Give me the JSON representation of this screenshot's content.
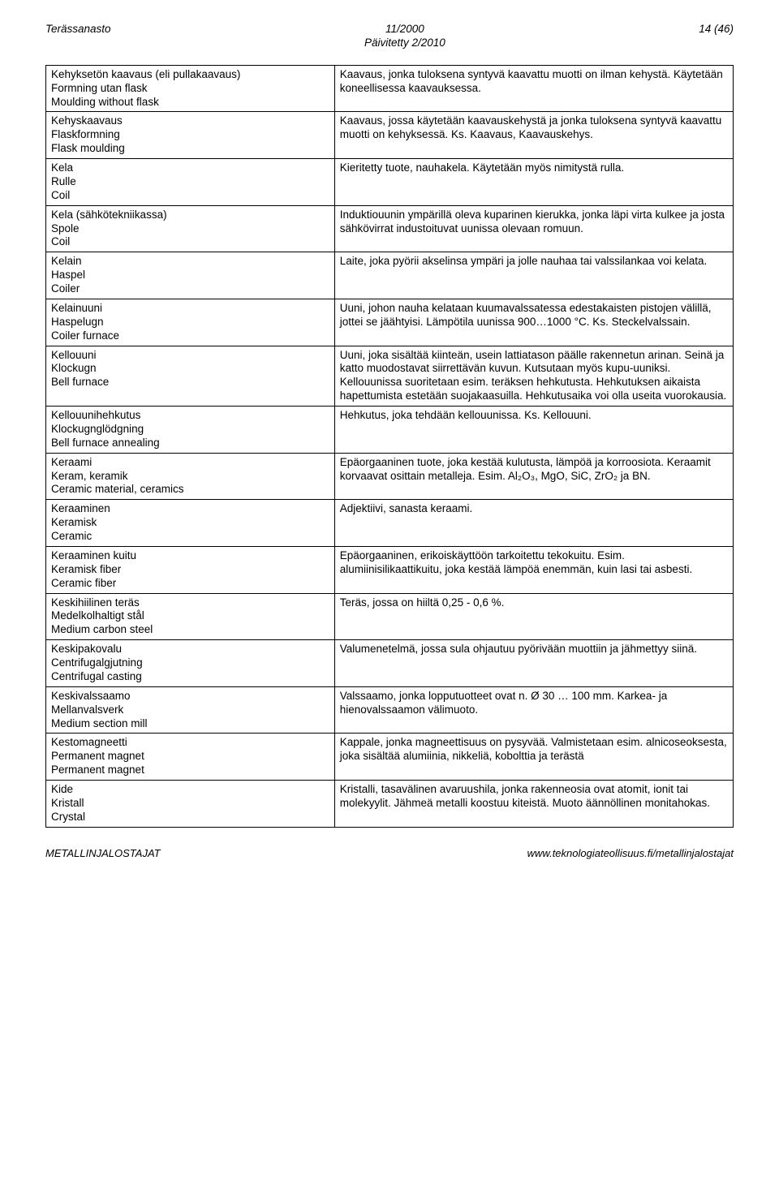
{
  "header": {
    "left": "Terässanasto",
    "center_line1": "11/2000",
    "center_line2": "Päivitetty 2/2010",
    "right": "14 (46)"
  },
  "rows": [
    {
      "terms": [
        "Kehyksetön kaavaus (eli pullakaavaus)",
        "Formning utan flask",
        "Moulding without flask"
      ],
      "def": "Kaavaus, jonka tuloksena syntyvä kaavattu muotti on ilman kehystä. Käytetään koneellisessa kaavauksessa."
    },
    {
      "terms": [
        "Kehyskaavaus",
        "Flaskformning",
        "Flask moulding"
      ],
      "def": "Kaavaus, jossa käytetään kaavauskehystä ja jonka tuloksena syntyvä kaavattu muotti on kehyksessä. Ks. Kaavaus, Kaavauskehys."
    },
    {
      "terms": [
        "Kela",
        "Rulle",
        "Coil"
      ],
      "def": "Kieritetty tuote, nauhakela. Käytetään myös nimitystä rulla."
    },
    {
      "terms": [
        "Kela (sähkötekniikassa)",
        "Spole",
        "Coil"
      ],
      "def": "Induktiouunin ympärillä oleva kuparinen kierukka, jonka läpi virta kulkee ja josta sähkövirrat industoituvat uunissa olevaan romuun."
    },
    {
      "terms": [
        "Kelain",
        "Haspel",
        "Coiler"
      ],
      "def": "Laite, joka pyörii akselinsa ympäri ja jolle nauhaa tai valssilankaa voi kelata."
    },
    {
      "terms": [
        "Kelainuuni",
        "Haspelugn",
        "Coiler furnace"
      ],
      "def": "Uuni, johon nauha kelataan kuumavalssatessa edestakaisten pistojen välillä, jottei se jäähtyisi. Lämpötila uunissa 900…1000 °C. Ks. Steckelvalssain."
    },
    {
      "terms": [
        "Kellouuni",
        "Klockugn",
        "Bell furnace"
      ],
      "def": "Uuni, joka sisältää kiinteän, usein lattiatason päälle rakennetun arinan. Seinä ja katto muodostavat siirrettävän kuvun. Kutsutaan myös kupu-uuniksi. Kellouunissa suoritetaan esim. teräksen hehkutusta. Hehkutuksen aikaista hapettumista estetään suojakaasuilla. Hehkutusaika voi olla useita vuorokausia."
    },
    {
      "terms": [
        "Kellouunihehkutus",
        "Klockugnglödgning",
        "Bell furnace annealing"
      ],
      "def": "Hehkutus, joka tehdään kellouunissa. Ks. Kellouuni."
    },
    {
      "terms": [
        "Keraami",
        "Keram, keramik",
        "Ceramic material, ceramics"
      ],
      "def": "Epäorgaaninen tuote, joka kestää kulutusta, lämpöä ja korroosiota. Keraamit korvaavat osittain metalleja. Esim. Al₂O₃, MgO, SiC, ZrO₂ ja BN."
    },
    {
      "terms": [
        "Keraaminen",
        "Keramisk",
        "Ceramic"
      ],
      "def": "Adjektiivi, sanasta keraami."
    },
    {
      "terms": [
        "Keraaminen kuitu",
        "Keramisk fiber",
        "Ceramic fiber"
      ],
      "def": "Epäorgaaninen, erikoiskäyttöön tarkoitettu tekokuitu. Esim. alumiinisilikaattikuitu, joka kestää lämpöä enemmän, kuin lasi tai asbesti."
    },
    {
      "terms": [
        "Keskihiilinen teräs",
        "Medelkolhaltigt stål",
        "Medium carbon steel"
      ],
      "def": "Teräs, jossa on hiiltä 0,25 - 0,6 %."
    },
    {
      "terms": [
        "Keskipakovalu",
        "Centrifugalgjutning",
        "Centrifugal casting"
      ],
      "def": "Valumenetelmä, jossa sula ohjautuu pyörivään muottiin ja jähmettyy siinä."
    },
    {
      "terms": [
        "Keskivalssaamo",
        "Mellanvalsverk",
        "Medium section mill"
      ],
      "def": "Valssaamo, jonka lopputuotteet ovat n. Ø 30 … 100 mm.  Karkea- ja hienovalssaamon välimuoto."
    },
    {
      "terms": [
        "Kestomagneetti",
        "Permanent magnet",
        "Permanent magnet"
      ],
      "def": "Kappale, jonka magneettisuus on pysyvää. Valmistetaan esim. alnicoseoksesta, joka sisältää alumiinia, nikkeliä, kobolttia ja terästä"
    },
    {
      "terms": [
        "Kide",
        "Kristall",
        "Crystal"
      ],
      "def": "Kristalli, tasavälinen avaruushila, jonka rakenneosia ovat atomit, ionit tai molekyylit. Jähmeä metalli koostuu kiteistä. Muoto äännöllinen monitahokas."
    }
  ],
  "footer": {
    "left": "METALLINJALOSTAJAT",
    "right": "www.teknologiateollisuus.fi/metallinjalostajat"
  },
  "colors": {
    "text": "#000000",
    "background": "#ffffff",
    "border": "#000000"
  }
}
